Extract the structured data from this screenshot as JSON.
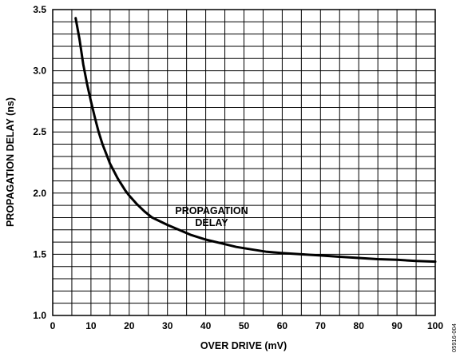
{
  "chart_data": {
    "type": "line",
    "xlabel": "OVER DRIVE (mV)",
    "ylabel": "PROPAGATION DELAY (ns)",
    "xlim": [
      0,
      100
    ],
    "ylim": [
      1.0,
      3.5
    ],
    "x_ticks": [
      "0",
      "10",
      "20",
      "30",
      "40",
      "50",
      "60",
      "70",
      "80",
      "90",
      "100"
    ],
    "y_ticks": [
      "1.0",
      "1.5",
      "2.0",
      "2.5",
      "3.0",
      "3.5"
    ],
    "grid": true,
    "annotation": [
      "PROPAGATION",
      "DELAY"
    ],
    "figure_code": "05916-004",
    "series": [
      {
        "x": [
          6,
          7,
          8,
          9,
          10,
          11,
          12,
          13,
          14,
          15,
          16,
          17,
          18,
          19,
          20,
          22,
          24,
          26,
          28,
          30,
          33,
          36,
          40,
          44,
          48,
          52,
          56,
          60,
          65,
          70,
          75,
          80,
          85,
          90,
          95,
          100
        ],
        "y": [
          3.43,
          3.26,
          3.05,
          2.89,
          2.75,
          2.62,
          2.5,
          2.4,
          2.32,
          2.24,
          2.18,
          2.12,
          2.07,
          2.02,
          1.98,
          1.91,
          1.85,
          1.8,
          1.77,
          1.74,
          1.7,
          1.66,
          1.62,
          1.59,
          1.56,
          1.54,
          1.52,
          1.51,
          1.5,
          1.49,
          1.48,
          1.47,
          1.46,
          1.455,
          1.445,
          1.44
        ]
      }
    ]
  }
}
